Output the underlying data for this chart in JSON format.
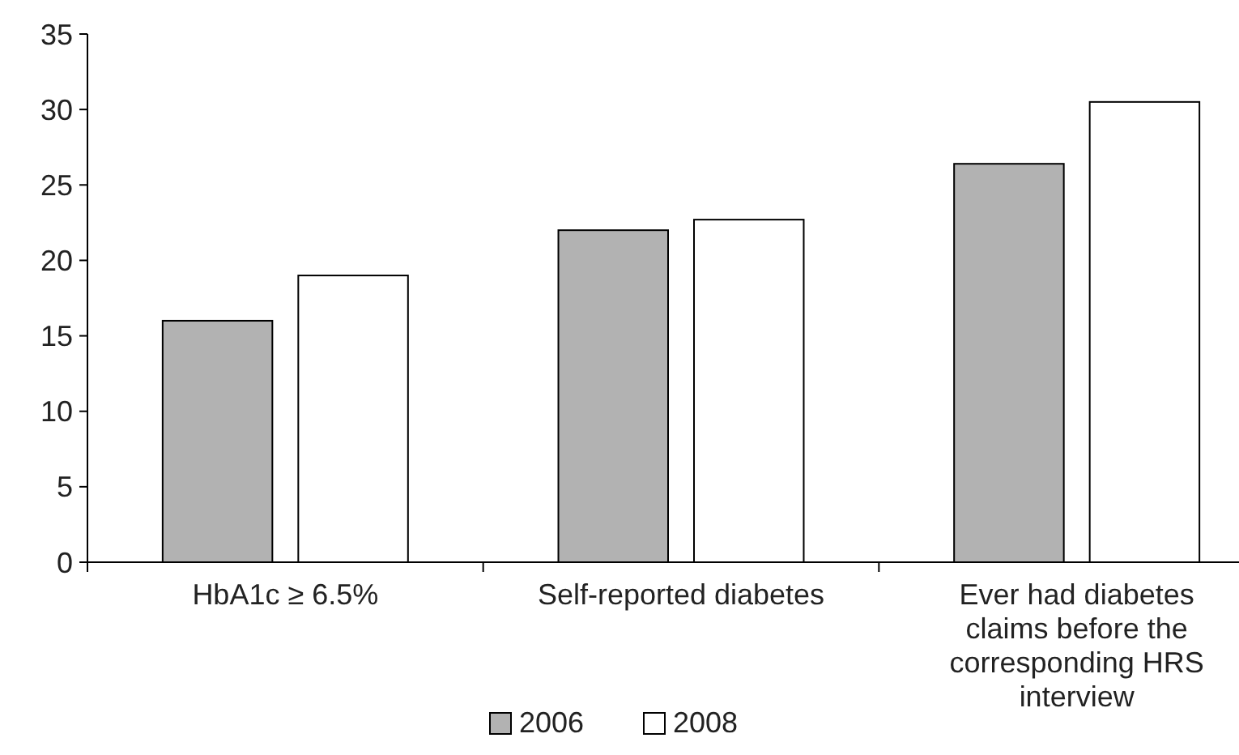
{
  "chart_data": {
    "type": "bar",
    "categories": [
      "HbA1c ≥ 6.5%",
      "Self-reported diabetes",
      "Ever had diabetes claims before the corresponding HRS interview"
    ],
    "series": [
      {
        "name": "2006",
        "color": "#b2b2b2",
        "values": [
          16,
          22,
          26.4
        ]
      },
      {
        "name": "2008",
        "color": "#ffffff",
        "values": [
          19,
          22.7,
          30.5
        ]
      }
    ],
    "ylim": [
      0,
      35
    ],
    "yticks": [
      0,
      5,
      10,
      15,
      20,
      25,
      30,
      35
    ],
    "grid": false,
    "legend": "bottom"
  }
}
